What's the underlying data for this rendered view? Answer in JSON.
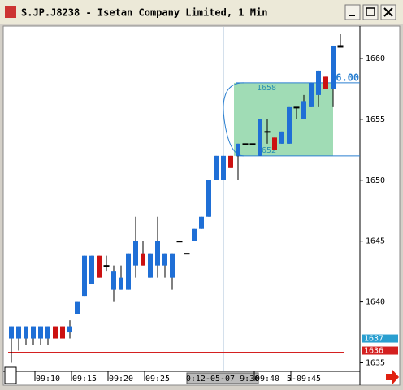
{
  "window": {
    "title": "S.JP.J8238 - Isetan Company Limited, 1 Min"
  },
  "chart_data": {
    "type": "candlestick",
    "categories": [
      null,
      null,
      null,
      null,
      null,
      "09:10",
      null,
      null,
      null,
      null,
      "09:15",
      null,
      null,
      null,
      null,
      "09:20",
      null,
      null,
      null,
      null,
      "09:25",
      null,
      null,
      null,
      null,
      null,
      null,
      null,
      null,
      null,
      null,
      null,
      null,
      null,
      null,
      "09:40",
      null,
      null,
      null,
      null,
      "5-09:45",
      null,
      null,
      null,
      null,
      null
    ],
    "open": [
      1637,
      1637,
      1637,
      1637,
      1637,
      1637,
      1638,
      1638,
      1637.5,
      1639,
      1640.5,
      1641.5,
      1643.8,
      1643,
      1641,
      1641,
      1641,
      1643,
      1644,
      1642,
      1643,
      1643,
      1642,
      1645,
      1644,
      1645,
      1646,
      1647,
      1650,
      1650,
      1652,
      1652,
      1653,
      1653,
      1652,
      1654,
      1653.5,
      1653,
      1653,
      1656,
      1655,
      1656,
      1657,
      1658.5,
      1657.5,
      1661
    ],
    "high": [
      1638,
      1638,
      1638,
      1638,
      1638,
      1638,
      1638,
      1638,
      1638.5,
      1640,
      1643.8,
      1643.8,
      1643.8,
      1643.8,
      1643,
      1643,
      1644,
      1647,
      1645,
      1644,
      1647,
      1644,
      1644,
      1645,
      1644,
      1646,
      1647,
      1650,
      1652,
      1652,
      1652,
      1653,
      1653,
      1653,
      1655,
      1655,
      1653.5,
      1654,
      1656,
      1656,
      1657,
      1658,
      1659,
      1658.5,
      1661,
      1662
    ],
    "low": [
      1635,
      1636,
      1636.5,
      1636.5,
      1636.5,
      1636.5,
      1637,
      1637,
      1637,
      1639,
      1640.5,
      1641.5,
      1642,
      1642.5,
      1640,
      1641,
      1641,
      1642,
      1643,
      1642,
      1642,
      1642,
      1641,
      1645,
      1644,
      1645,
      1646,
      1647,
      1650,
      1650,
      1651,
      1650,
      1653,
      1653,
      1652,
      1653,
      1652.5,
      1653,
      1653,
      1655,
      1655,
      1656,
      1656,
      1657.5,
      1656,
      1661
    ],
    "close": [
      1638,
      1638,
      1638,
      1638,
      1638,
      1638,
      1637,
      1637,
      1638,
      1640,
      1643.8,
      1643.8,
      1642,
      1643,
      1642.5,
      1642,
      1644,
      1645,
      1643,
      1644,
      1645,
      1644,
      1644,
      1645,
      1644,
      1646,
      1647,
      1650,
      1652,
      1652,
      1651,
      1653,
      1653,
      1653,
      1655,
      1654,
      1652.5,
      1654,
      1656,
      1656,
      1656.5,
      1658,
      1659,
      1657.5,
      1661,
      1661
    ],
    "up_color": "#1f6fd6",
    "down_color": "#cc1111",
    "ylim": [
      1634.3,
      1662.6
    ],
    "yticks": [
      1635,
      1640,
      1645,
      1650,
      1655,
      1660
    ],
    "levels": [
      {
        "value": 1637,
        "label": "1637",
        "color": "#2a9fd0"
      },
      {
        "value": 1636,
        "label": "1636",
        "color": "#d42020"
      }
    ],
    "zone": {
      "high": 1658,
      "low": 1652,
      "color": "#8fd6a8"
    },
    "cursor_price_label": "16.00",
    "cursor_time_label": "0:12-05-07  9:36"
  }
}
